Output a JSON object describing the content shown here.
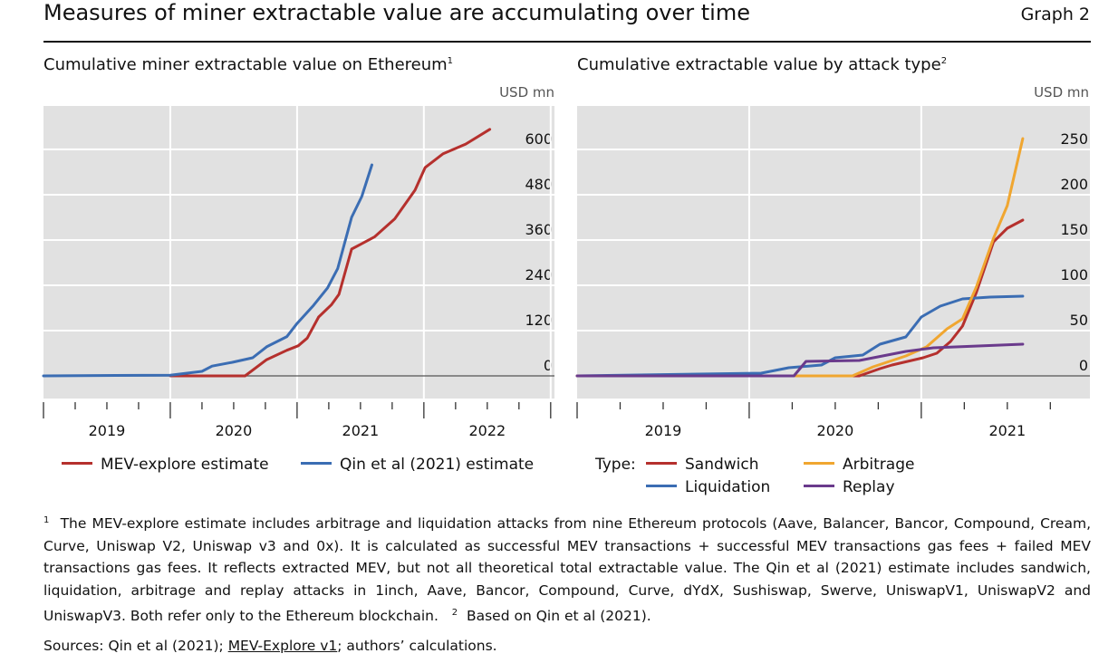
{
  "header": {
    "title": "Measures of miner extractable value are accumulating over time",
    "graph_label": "Graph 2"
  },
  "colors": {
    "mev": "#b5302d",
    "qin": "#3b6db3",
    "sandwich": "#b5302d",
    "liquidation": "#3b6db3",
    "arbitrage": "#f0a630",
    "replay": "#6a3a8c",
    "plot_bg": "#e1e1e1"
  },
  "chart_data": [
    {
      "type": "line",
      "title": "Cumulative miner extractable value on Ethereum",
      "title_note": "1",
      "unit": "USD mn",
      "xlim": [
        2019,
        2023.03
      ],
      "ylim": [
        -60,
        715
      ],
      "yticks": [
        0,
        120,
        240,
        360,
        480,
        600
      ],
      "xtick_labels": [
        "2019",
        "2020",
        "2021",
        "2022"
      ],
      "grid": true,
      "legend": "bottom",
      "series": [
        {
          "name": "MEV-explore estimate",
          "color": "#b5302d",
          "x": [
            2020.0,
            2020.59,
            2020.76,
            2020.92,
            2021.01,
            2021.08,
            2021.17,
            2021.27,
            2021.33,
            2021.43,
            2021.51,
            2021.61,
            2021.77,
            2021.93,
            2022.01,
            2022.15,
            2022.33,
            2022.52
          ],
          "y": [
            0,
            0,
            43,
            68,
            80,
            100,
            156,
            188,
            216,
            336,
            350,
            368,
            416,
            492,
            552,
            588,
            614,
            653
          ]
        },
        {
          "name": "Qin et al (2021) estimate",
          "color": "#3b6db3",
          "x": [
            2019.0,
            2020.0,
            2020.25,
            2020.33,
            2020.49,
            2020.65,
            2020.76,
            2020.92,
            2021.0,
            2021.13,
            2021.24,
            2021.32,
            2021.43,
            2021.51,
            2021.59
          ],
          "y": [
            0,
            2,
            12,
            26,
            36,
            48,
            77,
            104,
            139,
            187,
            233,
            284,
            420,
            475,
            559
          ]
        }
      ]
    },
    {
      "type": "line",
      "title": "Cumulative extractable value by attack type",
      "title_note": "2",
      "unit": "USD mn",
      "xlim": [
        2019,
        2021.98
      ],
      "ylim": [
        -25,
        298
      ],
      "yticks": [
        0,
        50,
        100,
        150,
        200,
        250
      ],
      "xtick_labels": [
        "2019",
        "2020",
        "2021"
      ],
      "grid": true,
      "legend": "bottom",
      "legend_title": "Type:",
      "series": [
        {
          "name": "Sandwich",
          "color": "#b5302d",
          "x": [
            2019.0,
            2020.64,
            2020.76,
            2020.83,
            2021.01,
            2021.09,
            2021.17,
            2021.24,
            2021.32,
            2021.42,
            2021.5,
            2021.59
          ],
          "y": [
            0,
            0,
            8,
            12,
            20,
            25,
            38,
            55,
            92,
            148,
            163,
            172
          ]
        },
        {
          "name": "Liquidation",
          "color": "#3b6db3",
          "x": [
            2019.0,
            2020.07,
            2020.23,
            2020.42,
            2020.5,
            2020.66,
            2020.76,
            2020.91,
            2021.0,
            2021.11,
            2021.24,
            2021.4,
            2021.59
          ],
          "y": [
            0,
            3,
            9,
            12,
            20,
            23,
            35,
            43,
            65,
            77,
            85,
            87,
            88
          ]
        },
        {
          "name": "Arbitrage",
          "color": "#f0a630",
          "x": [
            2019.0,
            2020.6,
            2020.72,
            2020.91,
            2021.03,
            2021.15,
            2021.24,
            2021.32,
            2021.42,
            2021.5,
            2021.59
          ],
          "y": [
            0,
            0,
            10,
            22,
            32,
            52,
            63,
            98,
            152,
            188,
            262
          ]
        },
        {
          "name": "Replay",
          "color": "#6a3a8c",
          "x": [
            2019.0,
            2020.26,
            2020.33,
            2020.64,
            2020.91,
            2021.07,
            2021.59
          ],
          "y": [
            0,
            0,
            16,
            17,
            27,
            31,
            35
          ]
        }
      ]
    }
  ],
  "notes": {
    "n1_mark": "1",
    "n1": "The MEV-explore estimate includes arbitrage and liquidation attacks from nine Ethereum protocols (Aave, Balancer, Bancor, Compound, Cream, Curve, Uniswap V2, Uniswap v3 and 0x). It is calculated as successful MEV transactions + successful MEV transactions gas fees + failed MEV transactions gas fees. It reflects extracted MEV, but not all theoretical total extractable value. The Qin et al (2021) estimate includes sandwich, liquidation, arbitrage and replay attacks in 1inch, Aave, Bancor, Compound, Curve, dYdX, Sushiswap, Swerve, UniswapV1, UniswapV2 and UniswapV3. Both refer only to the Ethereum blockchain.",
    "n2_mark": "2",
    "n2": "Based on Qin et al (2021)."
  },
  "sources": {
    "prefix": "Sources: Qin et al (2021); ",
    "link": "MEV-Explore v1",
    "suffix": "; authors’ calculations."
  }
}
